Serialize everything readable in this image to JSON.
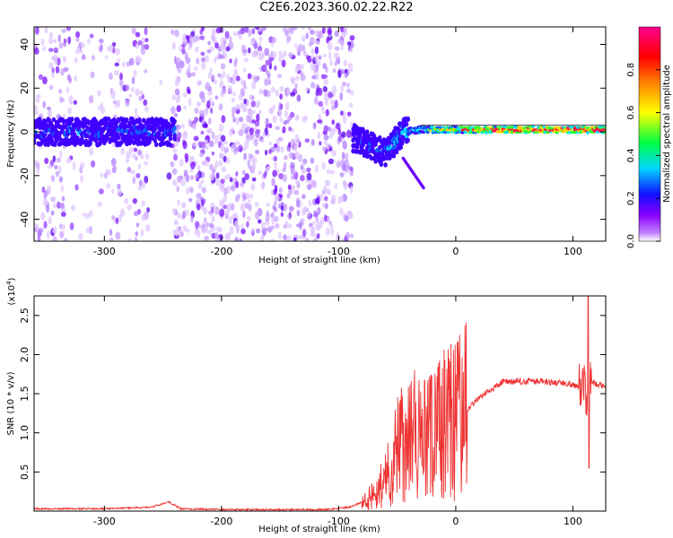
{
  "title": "C2E6.2023.360.02.22.R22",
  "chart_data": [
    {
      "type": "heatmap",
      "xlabel": "Height of straight line (km)",
      "ylabel": "Frequency (Hz)",
      "xlim": [
        -360,
        128
      ],
      "ylim": [
        -50,
        48
      ],
      "x_ticks": [
        -300,
        -200,
        -100,
        0,
        100
      ],
      "x_tick_labels": [
        "-300",
        "-200",
        "-100",
        "0",
        "100"
      ],
      "y_ticks": [
        -40,
        -20,
        0,
        20,
        40
      ],
      "y_tick_labels": [
        "-40",
        "-20",
        "0",
        "20",
        "40"
      ],
      "colorbar": {
        "label": "Normalized spectral amplitude",
        "range": [
          0,
          1
        ],
        "ticks": [
          0.0,
          0.2,
          0.4,
          0.6,
          0.8
        ],
        "tick_labels": [
          "0.0",
          "0.2",
          "0.4",
          "0.6",
          "0.8"
        ],
        "colormap": [
          "#ffffff",
          "#8b00ff",
          "#0000ff",
          "#00ffff",
          "#00ff00",
          "#ffff00",
          "#ff8000",
          "#ff0000",
          "#ff0080"
        ]
      },
      "ridge": [
        {
          "x": -360,
          "f": 0,
          "amp": 0.3
        },
        {
          "x": -250,
          "f": 0,
          "amp": 0.3
        },
        {
          "x": -85,
          "f": -3,
          "amp": 0.2
        },
        {
          "x": -60,
          "f": -10,
          "amp": 0.35
        },
        {
          "x": -45,
          "f": 0,
          "amp": 0.4
        },
        {
          "x": -30,
          "f": 1,
          "amp": 0.6
        },
        {
          "x": 0,
          "f": 1,
          "amp": 0.75
        },
        {
          "x": 50,
          "f": 1,
          "amp": 0.9
        },
        {
          "x": 128,
          "f": 1,
          "amp": 0.9
        }
      ]
    },
    {
      "type": "line",
      "xlabel": "Height of straight line (km)",
      "ylabel": "SNR (10 * v/v)",
      "yscale_label": "(x10",
      "yscale_exp": "4",
      "yscale_close": ")",
      "xlim": [
        -360,
        128
      ],
      "ylim": [
        0,
        2.75
      ],
      "x_ticks": [
        -300,
        -200,
        -100,
        0,
        100
      ],
      "x_tick_labels": [
        "-300",
        "-200",
        "-100",
        "0",
        "100"
      ],
      "y_ticks": [
        0.5,
        1.0,
        1.5,
        2.0,
        2.5
      ],
      "y_tick_labels": [
        "0.5",
        "1.0",
        "1.5",
        "2.0",
        "2.5"
      ],
      "series": [
        {
          "color": "#ee3333",
          "x": [
            -360,
            -300,
            -260,
            -245,
            -235,
            -200,
            -110,
            -90,
            -75,
            -60,
            -50,
            -40,
            -30,
            -20,
            -10,
            0,
            10,
            20,
            30,
            40,
            60,
            80,
            100,
            105,
            110,
            112,
            115,
            120,
            128
          ],
          "y": [
            0.03,
            0.03,
            0.05,
            0.12,
            0.03,
            0.02,
            0.02,
            0.05,
            0.15,
            0.4,
            0.8,
            1.0,
            0.9,
            0.95,
            1.1,
            1.2,
            1.3,
            1.45,
            1.55,
            1.65,
            1.66,
            1.65,
            1.62,
            1.6,
            1.7,
            1.4,
            1.65,
            1.63,
            1.6
          ]
        }
      ]
    }
  ]
}
